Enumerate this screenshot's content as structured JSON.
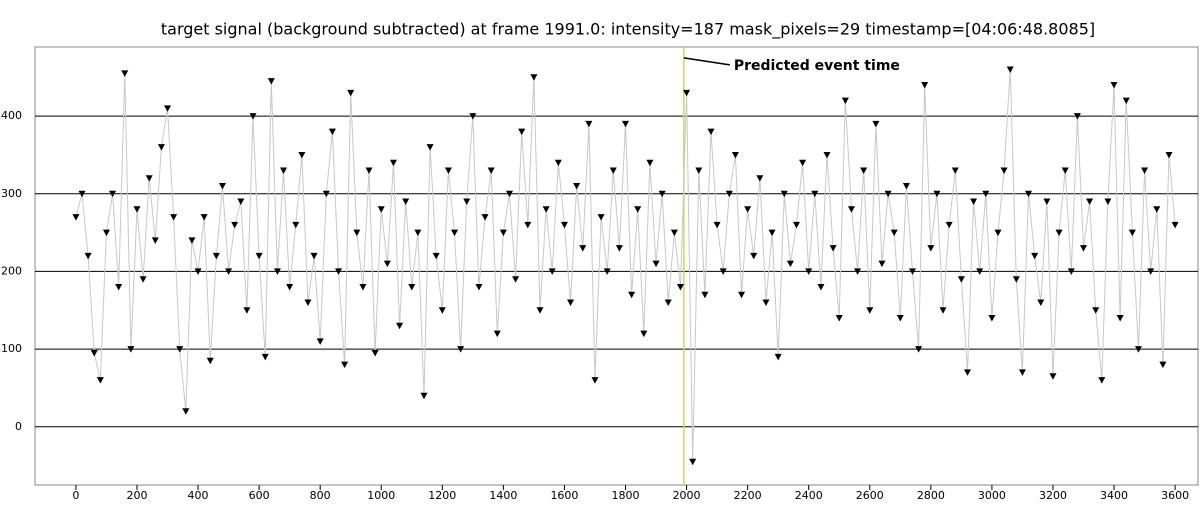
{
  "chart_data": {
    "type": "scatter",
    "title": "target signal (background subtracted) at frame 1991.0: intensity=187 mask_pixels=29 timestamp=[04:06:48.8085]",
    "x": [
      0,
      20,
      40,
      60,
      80,
      100,
      120,
      140,
      160,
      180,
      200,
      220,
      240,
      260,
      280,
      300,
      320,
      340,
      360,
      380,
      400,
      420,
      440,
      460,
      480,
      500,
      520,
      540,
      560,
      580,
      600,
      620,
      640,
      660,
      680,
      700,
      720,
      740,
      760,
      780,
      800,
      820,
      840,
      860,
      880,
      900,
      920,
      940,
      960,
      980,
      1000,
      1020,
      1040,
      1060,
      1080,
      1100,
      1120,
      1140,
      1160,
      1180,
      1200,
      1220,
      1240,
      1260,
      1280,
      1300,
      1320,
      1340,
      1360,
      1380,
      1400,
      1420,
      1440,
      1460,
      1480,
      1500,
      1520,
      1540,
      1560,
      1580,
      1600,
      1620,
      1640,
      1660,
      1680,
      1700,
      1720,
      1740,
      1760,
      1780,
      1800,
      1820,
      1840,
      1860,
      1880,
      1900,
      1920,
      1940,
      1960,
      1980,
      2000,
      2020,
      2040,
      2060,
      2080,
      2100,
      2120,
      2140,
      2160,
      2180,
      2200,
      2220,
      2240,
      2260,
      2280,
      2300,
      2320,
      2340,
      2360,
      2380,
      2400,
      2420,
      2440,
      2460,
      2480,
      2500,
      2520,
      2540,
      2560,
      2580,
      2600,
      2620,
      2640,
      2660,
      2680,
      2700,
      2720,
      2740,
      2760,
      2780,
      2800,
      2820,
      2840,
      2860,
      2880,
      2900,
      2920,
      2940,
      2960,
      2980,
      3000,
      3020,
      3040,
      3060,
      3080,
      3100,
      3120,
      3140,
      3160,
      3180,
      3200,
      3220,
      3240,
      3260,
      3280,
      3300,
      3320,
      3340,
      3360,
      3380,
      3400,
      3420,
      3440,
      3460,
      3480,
      3500,
      3520,
      3540,
      3560,
      3580,
      3600
    ],
    "series": [
      {
        "color": "#000000",
        "line_color": "#c8c8c8",
        "values": [
          270,
          300,
          220,
          95,
          60,
          250,
          300,
          180,
          455,
          100,
          280,
          190,
          320,
          240,
          360,
          410,
          270,
          100,
          20,
          240,
          200,
          270,
          85,
          220,
          310,
          200,
          260,
          290,
          150,
          400,
          220,
          90,
          445,
          200,
          330,
          180,
          260,
          350,
          160,
          220,
          110,
          300,
          380,
          200,
          80,
          430,
          250,
          180,
          330,
          95,
          280,
          210,
          340,
          130,
          290,
          180,
          250,
          40,
          360,
          220,
          150,
          330,
          250,
          100,
          290,
          400,
          180,
          270,
          330,
          120,
          250,
          300,
          190,
          380,
          260,
          450,
          150,
          280,
          200,
          340,
          260,
          160,
          310,
          230,
          390,
          60,
          270,
          200,
          330,
          230,
          390,
          170,
          280,
          120,
          340,
          210,
          300,
          160,
          250,
          180,
          430,
          -45,
          330,
          170,
          380,
          260,
          200,
          300,
          350,
          170,
          280,
          220,
          320,
          160,
          250,
          90,
          300,
          210,
          260,
          340,
          200,
          300,
          180,
          350,
          230,
          140,
          420,
          280,
          200,
          330,
          150,
          390,
          210,
          300,
          250,
          140,
          310,
          200,
          100,
          440,
          230,
          300,
          150,
          260,
          330,
          190,
          70,
          290,
          200,
          300,
          140,
          250,
          330,
          460,
          190,
          70,
          300,
          220,
          160,
          290,
          65,
          250,
          330,
          200,
          400,
          230,
          290,
          150,
          60,
          290,
          440,
          140,
          420,
          250,
          100,
          330,
          200,
          280,
          80,
          350,
          260
        ]
      }
    ],
    "xlim": [
      -134,
      3675
    ],
    "ylim": [
      -75,
      489
    ],
    "xticks": [
      0,
      200,
      400,
      600,
      800,
      1000,
      1200,
      1400,
      1600,
      1800,
      2000,
      2200,
      2400,
      2600,
      2800,
      3000,
      3200,
      3400,
      3600
    ],
    "yticks": [
      0,
      100,
      200,
      300,
      400
    ],
    "grid": true,
    "vline": {
      "x": 1991,
      "color": "#c8d86a"
    },
    "annotation": {
      "text": "Predicted event time",
      "x": 1991,
      "y": 475
    }
  }
}
